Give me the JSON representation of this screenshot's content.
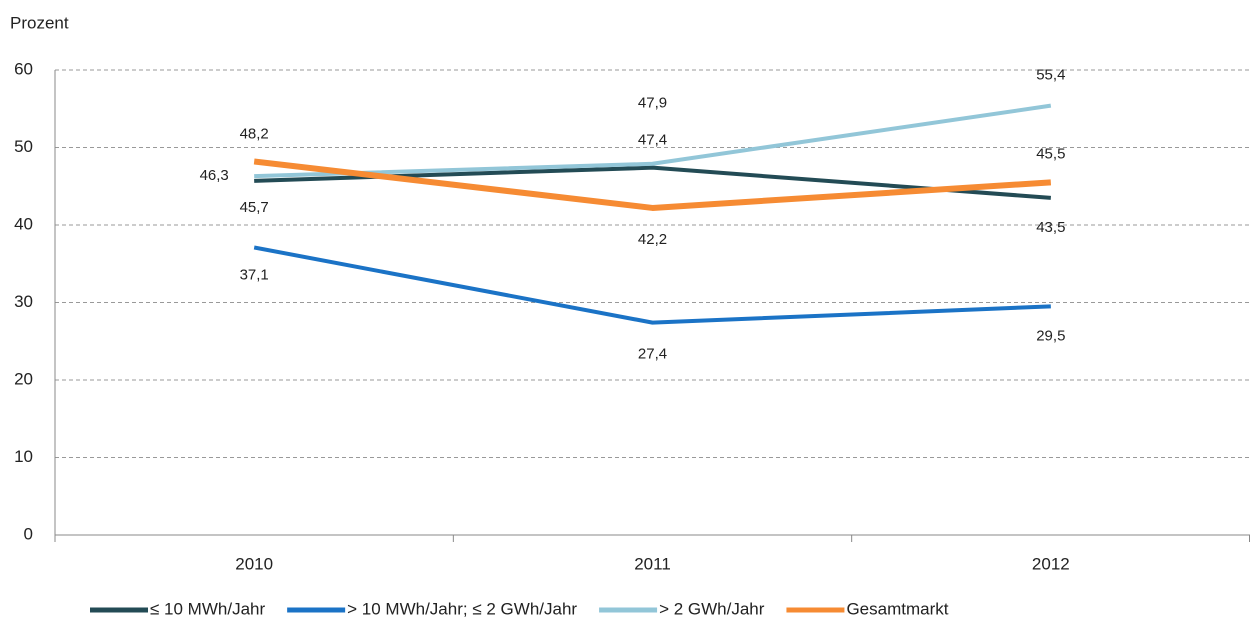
{
  "chart_data": {
    "type": "line",
    "y_label": "Prozent",
    "categories": [
      "2010",
      "2011",
      "2012"
    ],
    "series": [
      {
        "name": "≤ 10 MWh/Jahr",
        "color": "#234b55",
        "values": [
          45.7,
          47.4,
          43.5
        ],
        "value_labels": [
          "45,7",
          "47,4",
          "43,5"
        ]
      },
      {
        "name": "> 10 MWh/Jahr; ≤ 2 GWh/Jahr",
        "color": "#1b73c6",
        "values": [
          37.1,
          27.4,
          29.5
        ],
        "value_labels": [
          "37,1",
          "27,4",
          "29,5"
        ]
      },
      {
        "name": "> 2 GWh/Jahr",
        "color": "#92c6d8",
        "values": [
          46.3,
          47.9,
          55.4
        ],
        "value_labels": [
          "46,3",
          "47,9",
          "55,4"
        ]
      },
      {
        "name": "Gesamtmarkt",
        "color": "#f68b33",
        "values": [
          48.2,
          42.2,
          45.5
        ],
        "value_labels": [
          "48,2",
          "42,2",
          "45,5"
        ]
      }
    ],
    "ylim": [
      0,
      60
    ],
    "yticks": [
      0,
      10,
      20,
      30,
      40,
      50,
      60
    ],
    "grid": true,
    "legend": "bottom"
  }
}
